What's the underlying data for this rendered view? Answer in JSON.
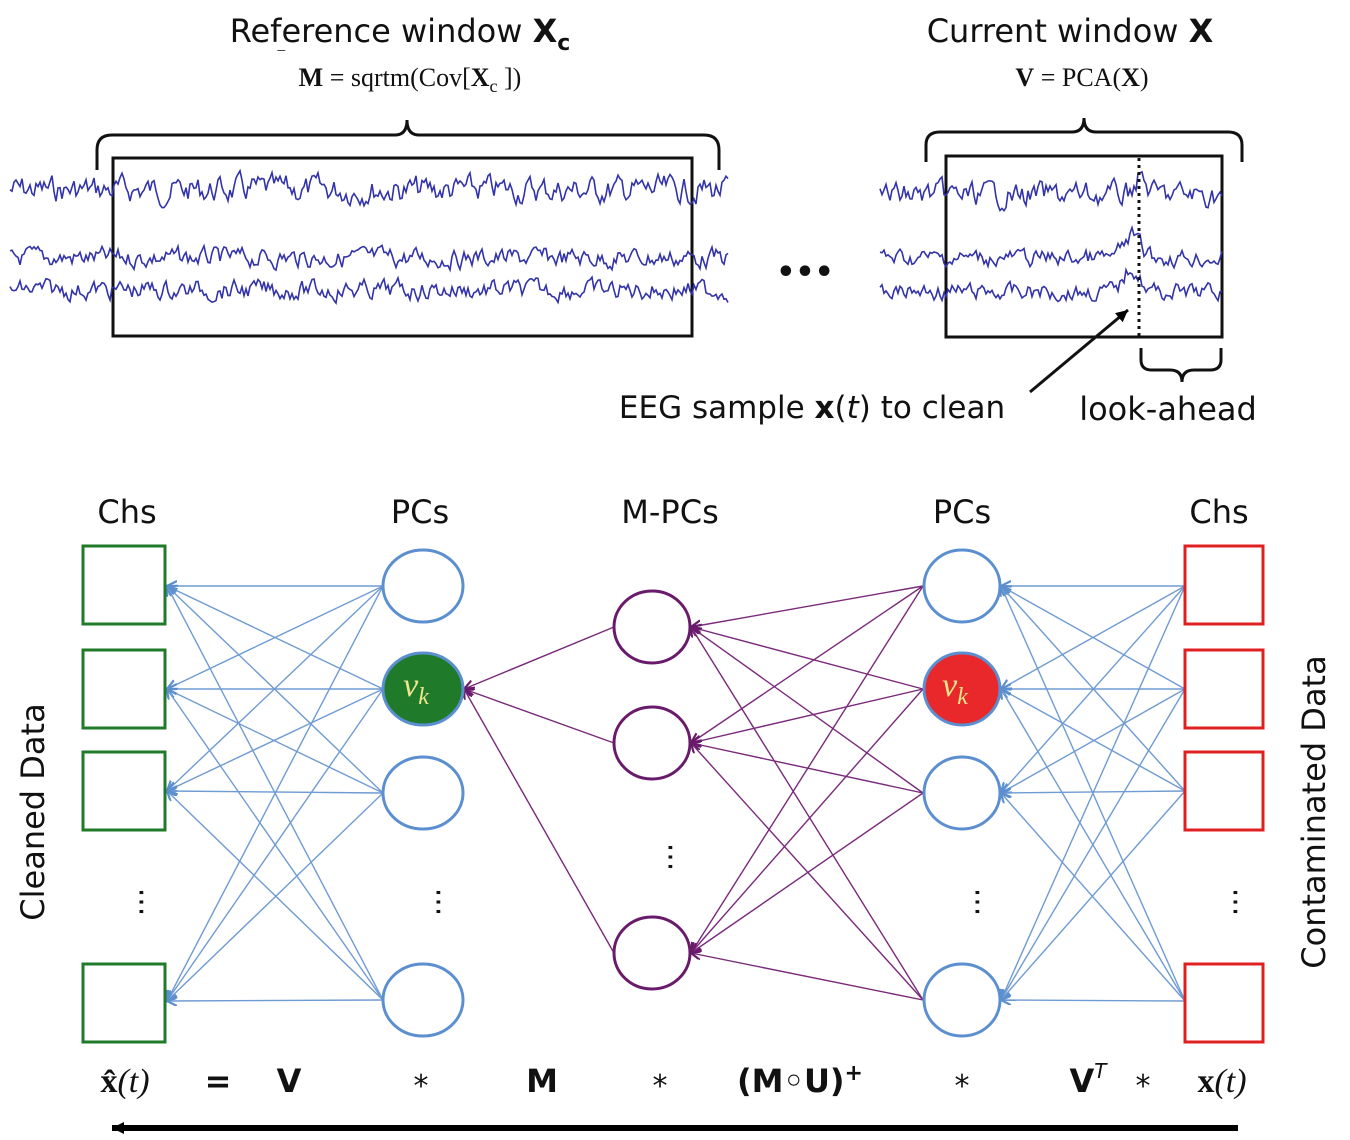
{
  "top": {
    "reference": {
      "title_text": "Reference window ",
      "title_symbol": "X",
      "title_sub": "c",
      "formula": {
        "sym": "M",
        "bar": "‾",
        "mid": " = sqrtm(Cov[",
        "x": "X",
        "sub": "c",
        "end": " ])"
      }
    },
    "current": {
      "title_text": "Current window ",
      "title_symbol": "X",
      "formula": {
        "v": "V",
        "mid": " = PCA(",
        "x": "X",
        "end": ")"
      }
    },
    "ellipsis": "•••",
    "sample_label": {
      "pre": "EEG sample ",
      "bold": "x",
      "paren_open": "(",
      "t": "t",
      "paren_close": ")",
      "post": " to clean"
    },
    "lookahead": "look-ahead"
  },
  "network": {
    "columns": [
      "Chs",
      "PCs",
      "M-PCs",
      "PCs",
      "Chs"
    ],
    "vk_base": "v",
    "vk_sub": "k",
    "dots": "···",
    "left_side_label": "Cleaned Data",
    "right_side_label": "Contaminated Data"
  },
  "equation": {
    "xhat": "x̂",
    "xhat_args": "(t)",
    "eq": "=",
    "v": "V",
    "star1": "*",
    "m": "M",
    "star2": "*",
    "mu": "(M◦U)",
    "mu_sup": "+",
    "star3": "*",
    "vt": "V",
    "vt_sup": "T",
    "star4": "*",
    "x": "x",
    "x_args": "(t)"
  },
  "colors": {
    "signal": "#3333aa",
    "pc_circle": "#5b8fd0",
    "link_blue": "#6f9bd3",
    "link_purple": "#7a2a7a",
    "mpc_circle": "#6a1a6a",
    "clean_box": "#1f7a2a",
    "contam_box": "#e02020",
    "vk_clean_fill": "#1f7a2a",
    "vk_contam_fill": "#e8282a",
    "vk_text": "#f0e68c"
  }
}
